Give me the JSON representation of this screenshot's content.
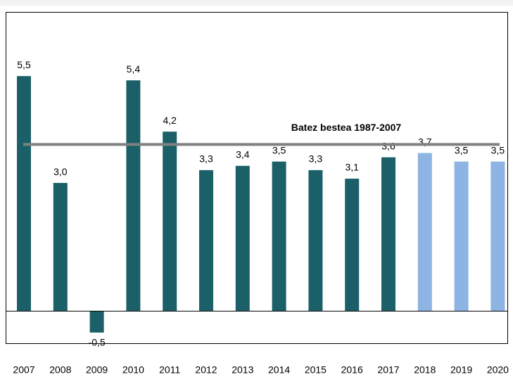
{
  "chart_data": {
    "type": "bar",
    "categories": [
      "2007",
      "2008",
      "2009",
      "2010",
      "2011",
      "2012",
      "2013",
      "2014",
      "2015",
      "2016",
      "2017",
      "2018",
      "2019",
      "2020"
    ],
    "values": [
      5.5,
      3.0,
      -0.5,
      5.4,
      4.2,
      3.3,
      3.4,
      3.5,
      3.3,
      3.1,
      3.6,
      3.7,
      3.5,
      3.5
    ],
    "value_labels": [
      "5,5",
      "3,0",
      "-0,5",
      "5,4",
      "4,2",
      "3,3",
      "3,4",
      "3,5",
      "3,3",
      "3,1",
      "3,6",
      "3,7",
      "3,5",
      "3,5"
    ],
    "colors": [
      "#1b6068",
      "#1b6068",
      "#1b6068",
      "#1b6068",
      "#1b6068",
      "#1b6068",
      "#1b6068",
      "#1b6068",
      "#1b6068",
      "#1b6068",
      "#1b6068",
      "#8db4e2",
      "#8db4e2",
      "#8db4e2"
    ],
    "ylim": [
      -0.75,
      7
    ],
    "reference_line": {
      "value": 3.9,
      "label": "Batez bestea 1987-2007",
      "color": "#808080"
    }
  }
}
